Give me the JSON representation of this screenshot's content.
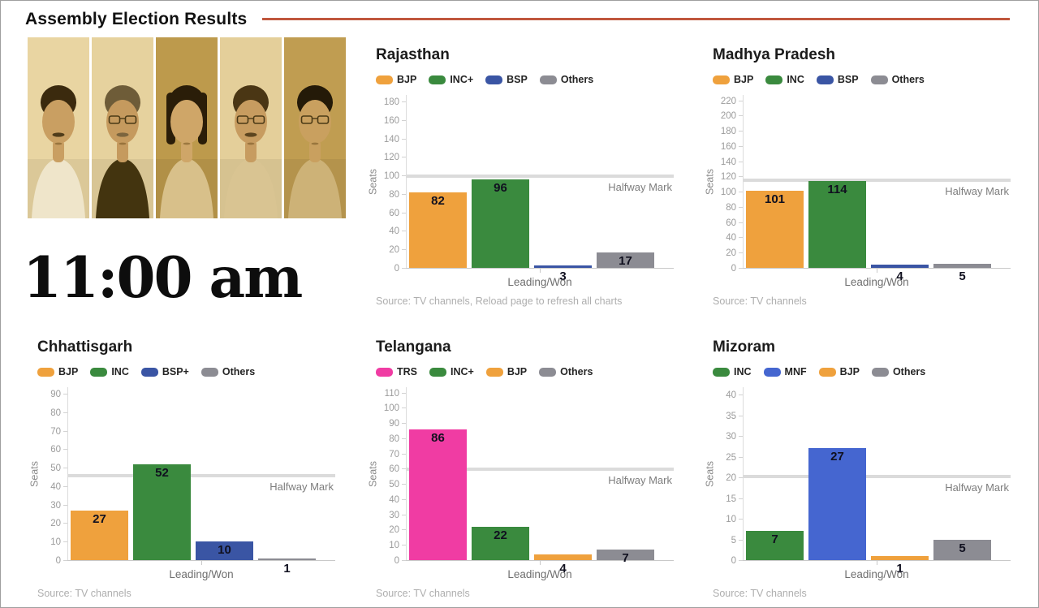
{
  "header": {
    "title": "Assembly Election Results"
  },
  "time_label": "11:00 am",
  "photo_strip": {
    "count": 5,
    "description": "sepia-toned portraits of five state political leaders"
  },
  "chart_data": [
    {
      "type": "bar",
      "title": "Rajasthan",
      "ylabel": "Seats",
      "xlabel": "Leading/Won",
      "y_axis": {
        "max_tick": 180,
        "step": 20
      },
      "halfway": {
        "value": 100,
        "label": "Halfway Mark"
      },
      "series": [
        {
          "name": "BJP",
          "value": 82,
          "color": "#efa13d"
        },
        {
          "name": "INC+",
          "value": 96,
          "color": "#3a8a3e"
        },
        {
          "name": "BSP",
          "value": 3,
          "color": "#3a55a4"
        },
        {
          "name": "Others",
          "value": 17,
          "color": "#8c8c93"
        }
      ],
      "source": "Source: TV channels, Reload page to refresh all charts"
    },
    {
      "type": "bar",
      "title": "Madhya Pradesh",
      "ylabel": "Seats",
      "xlabel": "Leading/Won",
      "y_axis": {
        "max_tick": 220,
        "step": 20
      },
      "halfway": {
        "value": 116,
        "label": "Halfway Mark"
      },
      "series": [
        {
          "name": "BJP",
          "value": 101,
          "color": "#efa13d"
        },
        {
          "name": "INC",
          "value": 114,
          "color": "#3a8a3e"
        },
        {
          "name": "BSP",
          "value": 4,
          "color": "#3a55a4"
        },
        {
          "name": "Others",
          "value": 5,
          "color": "#8c8c93"
        }
      ],
      "source": "Source: TV channels"
    },
    {
      "type": "bar",
      "title": "Chhattisgarh",
      "ylabel": "Seats",
      "xlabel": "Leading/Won",
      "y_axis": {
        "max_tick": 90,
        "step": 10
      },
      "halfway": {
        "value": 46,
        "label": "Halfway Mark"
      },
      "series": [
        {
          "name": "BJP",
          "value": 27,
          "color": "#efa13d"
        },
        {
          "name": "INC",
          "value": 52,
          "color": "#3a8a3e"
        },
        {
          "name": "BSP+",
          "value": 10,
          "color": "#3a55a4"
        },
        {
          "name": "Others",
          "value": 1,
          "color": "#8c8c93"
        }
      ],
      "source": "Source: TV channels"
    },
    {
      "type": "bar",
      "title": "Telangana",
      "ylabel": "Seats",
      "xlabel": "Leading/Won",
      "y_axis": {
        "max_tick": 110,
        "step": 10
      },
      "halfway": {
        "value": 60,
        "label": "Halfway Mark"
      },
      "series": [
        {
          "name": "TRS",
          "value": 86,
          "color": "#f03ca3"
        },
        {
          "name": "INC+",
          "value": 22,
          "color": "#3a8a3e"
        },
        {
          "name": "BJP",
          "value": 4,
          "color": "#efa13d"
        },
        {
          "name": "Others",
          "value": 7,
          "color": "#8c8c93"
        }
      ],
      "source": "Source: TV channels"
    },
    {
      "type": "bar",
      "title": "Mizoram",
      "ylabel": "Seats",
      "xlabel": "Leading/Won",
      "y_axis": {
        "max_tick": 40,
        "step": 5
      },
      "halfway": {
        "value": 20.5,
        "label": "Halfway Mark"
      },
      "series": [
        {
          "name": "INC",
          "value": 7,
          "color": "#3a8a3e"
        },
        {
          "name": "MNF",
          "value": 27,
          "color": "#4566d0"
        },
        {
          "name": "BJP",
          "value": 1,
          "color": "#efa13d"
        },
        {
          "name": "Others",
          "value": 5,
          "color": "#8c8c93"
        }
      ],
      "source": "Source: TV channels"
    }
  ]
}
